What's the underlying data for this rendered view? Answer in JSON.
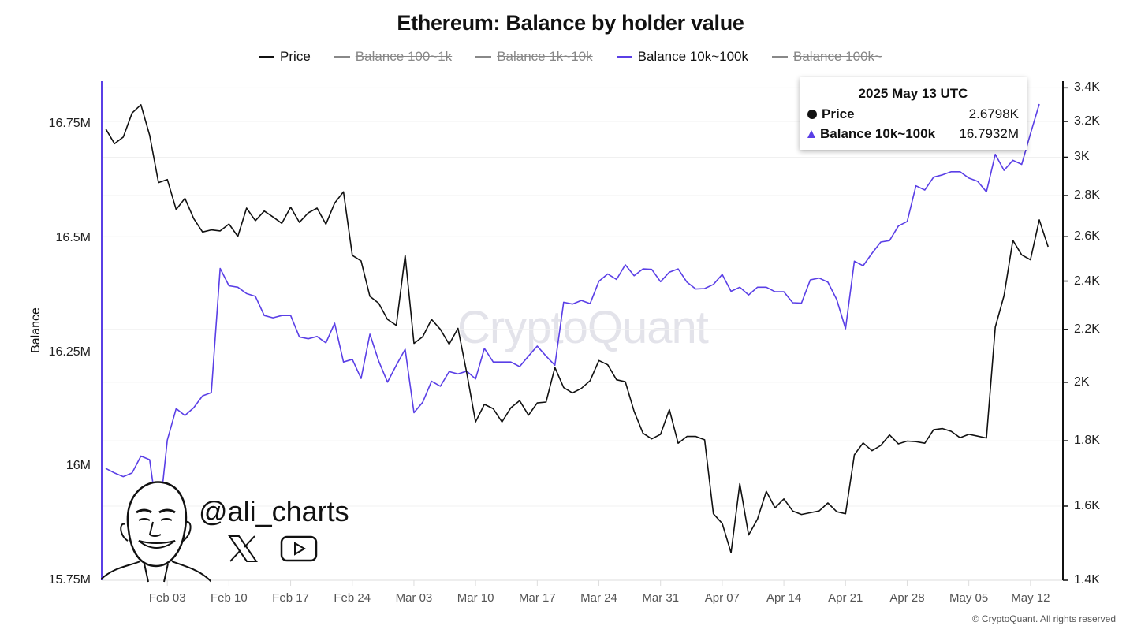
{
  "chart_data": {
    "type": "line",
    "title": "Ethereum: Balance by holder value",
    "ylabel_left": "Balance",
    "legend": [
      {
        "name": "Price",
        "color": "#111111",
        "active": true
      },
      {
        "name": "Balance 100~1k",
        "color": "#888888",
        "active": false
      },
      {
        "name": "Balance 1k~10k",
        "color": "#888888",
        "active": false
      },
      {
        "name": "Balance 10k~100k",
        "color": "#5a3fe6",
        "active": true
      },
      {
        "name": "Balance 100k~",
        "color": "#888888",
        "active": false
      }
    ],
    "legend_position": "top-center",
    "left_axis": {
      "scale": "linear",
      "ylim": [
        15.75,
        16.8
      ],
      "unit": "M",
      "ticks": [
        {
          "value": 15.75,
          "label": "15.75M"
        },
        {
          "value": 16.0,
          "label": "16M"
        },
        {
          "value": 16.25,
          "label": "16.25M"
        },
        {
          "value": 16.5,
          "label": "16.5M"
        },
        {
          "value": 16.75,
          "label": "16.75M"
        }
      ]
    },
    "right_axis": {
      "scale": "log",
      "ylim": [
        1.4,
        3.45
      ],
      "unit": "K",
      "ticks": [
        {
          "value": 1.4,
          "label": "1.4K"
        },
        {
          "value": 1.6,
          "label": "1.6K"
        },
        {
          "value": 1.8,
          "label": "1.8K"
        },
        {
          "value": 2.0,
          "label": "2K"
        },
        {
          "value": 2.2,
          "label": "2.2K"
        },
        {
          "value": 2.4,
          "label": "2.4K"
        },
        {
          "value": 2.6,
          "label": "2.6K"
        },
        {
          "value": 2.8,
          "label": "2.8K"
        },
        {
          "value": 3.0,
          "label": "3K"
        },
        {
          "value": 3.2,
          "label": "3.2K"
        },
        {
          "value": 3.4,
          "label": "3.4K"
        }
      ]
    },
    "x_ticks": [
      {
        "date": "2025-02-03",
        "label": "Feb 03"
      },
      {
        "date": "2025-02-10",
        "label": "Feb 10"
      },
      {
        "date": "2025-02-17",
        "label": "Feb 17"
      },
      {
        "date": "2025-02-24",
        "label": "Feb 24"
      },
      {
        "date": "2025-03-03",
        "label": "Mar 03"
      },
      {
        "date": "2025-03-10",
        "label": "Mar 10"
      },
      {
        "date": "2025-03-17",
        "label": "Mar 17"
      },
      {
        "date": "2025-03-24",
        "label": "Mar 24"
      },
      {
        "date": "2025-03-31",
        "label": "Mar 31"
      },
      {
        "date": "2025-04-07",
        "label": "Apr 07"
      },
      {
        "date": "2025-04-14",
        "label": "Apr 14"
      },
      {
        "date": "2025-04-21",
        "label": "Apr 21"
      },
      {
        "date": "2025-04-28",
        "label": "Apr 28"
      },
      {
        "date": "2025-05-05",
        "label": "May 05"
      },
      {
        "date": "2025-05-12",
        "label": "May 12"
      }
    ],
    "grid": "horizontal",
    "x": [
      "2025-01-27",
      "2025-01-28",
      "2025-01-29",
      "2025-01-30",
      "2025-01-31",
      "2025-02-01",
      "2025-02-02",
      "2025-02-03",
      "2025-02-04",
      "2025-02-05",
      "2025-02-06",
      "2025-02-07",
      "2025-02-08",
      "2025-02-09",
      "2025-02-10",
      "2025-02-11",
      "2025-02-12",
      "2025-02-13",
      "2025-02-14",
      "2025-02-15",
      "2025-02-16",
      "2025-02-17",
      "2025-02-18",
      "2025-02-19",
      "2025-02-20",
      "2025-02-21",
      "2025-02-22",
      "2025-02-23",
      "2025-02-24",
      "2025-02-25",
      "2025-02-26",
      "2025-02-27",
      "2025-02-28",
      "2025-03-01",
      "2025-03-02",
      "2025-03-03",
      "2025-03-04",
      "2025-03-05",
      "2025-03-06",
      "2025-03-07",
      "2025-03-08",
      "2025-03-09",
      "2025-03-10",
      "2025-03-11",
      "2025-03-12",
      "2025-03-13",
      "2025-03-14",
      "2025-03-15",
      "2025-03-16",
      "2025-03-17",
      "2025-03-18",
      "2025-03-19",
      "2025-03-20",
      "2025-03-21",
      "2025-03-22",
      "2025-03-23",
      "2025-03-24",
      "2025-03-25",
      "2025-03-26",
      "2025-03-27",
      "2025-03-28",
      "2025-03-29",
      "2025-03-30",
      "2025-03-31",
      "2025-04-01",
      "2025-04-02",
      "2025-04-03",
      "2025-04-04",
      "2025-04-05",
      "2025-04-06",
      "2025-04-07",
      "2025-04-08",
      "2025-04-09",
      "2025-04-10",
      "2025-04-11",
      "2025-04-12",
      "2025-04-13",
      "2025-04-14",
      "2025-04-15",
      "2025-04-16",
      "2025-04-17",
      "2025-04-18",
      "2025-04-19",
      "2025-04-20",
      "2025-04-21",
      "2025-04-22",
      "2025-04-23",
      "2025-04-24",
      "2025-04-25",
      "2025-04-26",
      "2025-04-27",
      "2025-04-28",
      "2025-04-29",
      "2025-04-30",
      "2025-05-01",
      "2025-05-02",
      "2025-05-03",
      "2025-05-04",
      "2025-05-05",
      "2025-05-06",
      "2025-05-07",
      "2025-05-08",
      "2025-05-09",
      "2025-05-10",
      "2025-05-11",
      "2025-05-12",
      "2025-05-13",
      "2025-05-14"
    ],
    "series": [
      {
        "name": "Price",
        "axis": "right",
        "color": "#111111",
        "values": [
          3.158,
          3.074,
          3.111,
          3.249,
          3.298,
          3.121,
          2.866,
          2.882,
          2.73,
          2.786,
          2.686,
          2.622,
          2.632,
          2.627,
          2.66,
          2.601,
          2.737,
          2.676,
          2.723,
          2.694,
          2.663,
          2.742,
          2.668,
          2.714,
          2.737,
          2.659,
          2.762,
          2.819,
          2.514,
          2.489,
          2.335,
          2.306,
          2.24,
          2.216,
          2.514,
          2.145,
          2.171,
          2.24,
          2.2,
          2.142,
          2.204,
          2.033,
          1.862,
          1.922,
          1.907,
          1.862,
          1.91,
          1.935,
          1.885,
          1.927,
          1.93,
          2.054,
          1.981,
          1.962,
          1.978,
          2.006,
          2.08,
          2.064,
          2.009,
          2.002,
          1.898,
          1.825,
          1.806,
          1.821,
          1.904,
          1.792,
          1.814,
          1.814,
          1.803,
          1.578,
          1.551,
          1.471,
          1.666,
          1.519,
          1.563,
          1.643,
          1.595,
          1.621,
          1.586,
          1.576,
          1.581,
          1.586,
          1.609,
          1.584,
          1.578,
          1.755,
          1.793,
          1.768,
          1.785,
          1.819,
          1.79,
          1.799,
          1.797,
          1.792,
          1.836,
          1.84,
          1.831,
          1.81,
          1.821,
          1.815,
          1.809,
          2.209,
          2.338,
          2.583,
          2.516,
          2.494,
          2.6798,
          2.553
        ]
      },
      {
        "name": "Balance 10k~100k",
        "axis": "left",
        "color": "#5a3fe6",
        "values": [
          15.995,
          15.985,
          15.977,
          15.985,
          16.022,
          16.014,
          15.873,
          16.057,
          16.126,
          16.111,
          16.128,
          16.154,
          16.161,
          16.433,
          16.395,
          16.392,
          16.378,
          16.372,
          16.33,
          16.325,
          16.33,
          16.33,
          16.283,
          16.279,
          16.284,
          16.27,
          16.313,
          16.228,
          16.234,
          16.192,
          16.289,
          16.23,
          16.184,
          16.221,
          16.256,
          16.117,
          16.14,
          16.186,
          16.175,
          16.207,
          16.202,
          16.208,
          16.191,
          16.258,
          16.228,
          16.228,
          16.228,
          16.218,
          16.241,
          16.263,
          16.241,
          16.221,
          16.359,
          16.355,
          16.363,
          16.356,
          16.405,
          16.421,
          16.409,
          16.441,
          16.417,
          16.432,
          16.431,
          16.404,
          16.425,
          16.432,
          16.403,
          16.388,
          16.389,
          16.398,
          16.42,
          16.383,
          16.392,
          16.375,
          16.392,
          16.392,
          16.382,
          16.382,
          16.358,
          16.357,
          16.408,
          16.412,
          16.403,
          16.365,
          16.301,
          16.449,
          16.439,
          16.466,
          16.491,
          16.494,
          16.526,
          16.536,
          16.614,
          16.605,
          16.633,
          16.638,
          16.645,
          16.645,
          16.631,
          16.624,
          16.601,
          16.683,
          16.648,
          16.67,
          16.661,
          16.728,
          16.7932,
          null
        ]
      }
    ]
  },
  "tooltip": {
    "date": "2025 May 13 UTC",
    "rows": [
      {
        "label": "Price",
        "value": "2.6798K",
        "marker": "circle"
      },
      {
        "label": "Balance 10k~100k",
        "value": "16.7932M",
        "marker": "triangle"
      }
    ]
  },
  "watermark": "CryptoQuant",
  "branding": {
    "handle": "@ali_charts",
    "icons": [
      "avatar-sketch",
      "x-logo-icon",
      "youtube-icon"
    ]
  },
  "copyright": "© CryptoQuant. All rights reserved"
}
